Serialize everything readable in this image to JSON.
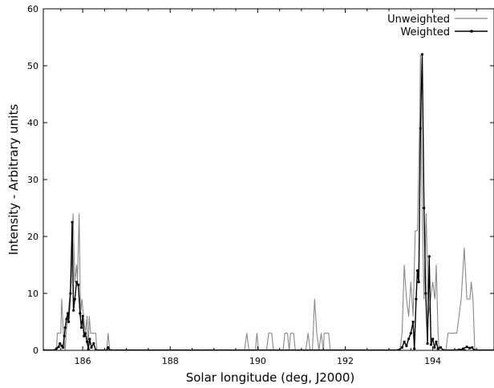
{
  "chart_data": {
    "type": "line",
    "xlabel": "Solar longitude (deg, J2000)",
    "ylabel": "Intensity - Arbitrary units",
    "xlim": [
      185.1,
      195.4
    ],
    "ylim": [
      0,
      60
    ],
    "xticks": [
      186,
      188,
      190,
      192,
      194
    ],
    "yticks": [
      0,
      10,
      20,
      30,
      40,
      50,
      60
    ],
    "grid": false,
    "legend_position": "top-right",
    "series": [
      {
        "name": "Unweighted",
        "color": "#888888",
        "marker": "none",
        "points": [
          [
            185.1,
            0
          ],
          [
            185.4,
            0
          ],
          [
            185.42,
            3
          ],
          [
            185.5,
            3
          ],
          [
            185.52,
            9
          ],
          [
            185.56,
            3
          ],
          [
            185.6,
            0
          ],
          [
            185.62,
            3
          ],
          [
            185.66,
            6
          ],
          [
            185.7,
            9
          ],
          [
            185.74,
            12
          ],
          [
            185.78,
            24
          ],
          [
            185.82,
            12
          ],
          [
            185.86,
            15
          ],
          [
            185.88,
            12
          ],
          [
            185.92,
            24
          ],
          [
            185.95,
            6
          ],
          [
            185.98,
            9
          ],
          [
            186.02,
            6
          ],
          [
            186.06,
            3
          ],
          [
            186.1,
            6
          ],
          [
            186.12,
            0
          ],
          [
            186.15,
            6
          ],
          [
            186.18,
            3
          ],
          [
            186.3,
            3
          ],
          [
            186.32,
            0
          ],
          [
            186.55,
            0
          ],
          [
            186.58,
            3
          ],
          [
            186.62,
            0
          ],
          [
            189.7,
            0
          ],
          [
            189.75,
            3
          ],
          [
            189.8,
            0
          ],
          [
            189.95,
            0
          ],
          [
            189.98,
            3
          ],
          [
            190.02,
            0
          ],
          [
            190.2,
            0
          ],
          [
            190.25,
            3
          ],
          [
            190.32,
            3
          ],
          [
            190.36,
            0
          ],
          [
            190.58,
            0
          ],
          [
            190.62,
            3
          ],
          [
            190.68,
            3
          ],
          [
            190.72,
            0
          ],
          [
            190.75,
            3
          ],
          [
            190.82,
            3
          ],
          [
            190.86,
            0
          ],
          [
            191.1,
            0
          ],
          [
            191.15,
            3
          ],
          [
            191.2,
            0
          ],
          [
            191.25,
            0
          ],
          [
            191.3,
            9
          ],
          [
            191.35,
            3
          ],
          [
            191.4,
            0
          ],
          [
            191.45,
            3
          ],
          [
            191.5,
            0
          ],
          [
            191.52,
            3
          ],
          [
            191.62,
            3
          ],
          [
            191.66,
            0
          ],
          [
            193.25,
            0
          ],
          [
            193.3,
            3
          ],
          [
            193.35,
            15
          ],
          [
            193.4,
            9
          ],
          [
            193.45,
            6
          ],
          [
            193.5,
            12
          ],
          [
            193.55,
            6
          ],
          [
            193.6,
            21
          ],
          [
            193.65,
            21
          ],
          [
            193.7,
            39
          ],
          [
            193.72,
            52
          ],
          [
            193.76,
            24
          ],
          [
            193.8,
            9
          ],
          [
            193.85,
            24
          ],
          [
            193.9,
            6
          ],
          [
            193.95,
            9
          ],
          [
            194.0,
            12
          ],
          [
            194.05,
            9
          ],
          [
            194.08,
            15
          ],
          [
            194.12,
            3
          ],
          [
            194.15,
            0
          ],
          [
            194.3,
            0
          ],
          [
            194.35,
            3
          ],
          [
            194.55,
            3
          ],
          [
            194.65,
            9
          ],
          [
            194.72,
            18
          ],
          [
            194.78,
            9
          ],
          [
            194.85,
            9
          ],
          [
            194.88,
            12
          ],
          [
            194.92,
            9
          ],
          [
            194.96,
            0
          ],
          [
            195.4,
            0
          ]
        ]
      },
      {
        "name": "Weighted",
        "color": "#000000",
        "marker": "dot",
        "points": [
          [
            185.1,
            0
          ],
          [
            185.35,
            0
          ],
          [
            185.4,
            0.3
          ],
          [
            185.45,
            0.6
          ],
          [
            185.48,
            1.2
          ],
          [
            185.52,
            0.8
          ],
          [
            185.55,
            0.5
          ],
          [
            185.58,
            2.5
          ],
          [
            185.6,
            4
          ],
          [
            185.63,
            5.5
          ],
          [
            185.66,
            6.5
          ],
          [
            185.68,
            5
          ],
          [
            185.72,
            10
          ],
          [
            185.76,
            22.5
          ],
          [
            185.79,
            7
          ],
          [
            185.82,
            9
          ],
          [
            185.86,
            12
          ],
          [
            185.9,
            11.5
          ],
          [
            185.94,
            6.5
          ],
          [
            185.97,
            4
          ],
          [
            186.0,
            6
          ],
          [
            186.03,
            2.5
          ],
          [
            186.06,
            3
          ],
          [
            186.1,
            1.5
          ],
          [
            186.13,
            0.2
          ],
          [
            186.16,
            2
          ],
          [
            186.2,
            0.5
          ],
          [
            186.25,
            1.2
          ],
          [
            186.3,
            0
          ],
          [
            186.55,
            0
          ],
          [
            186.58,
            0.5
          ],
          [
            186.62,
            0
          ],
          [
            193.2,
            0
          ],
          [
            193.3,
            0.5
          ],
          [
            193.35,
            1.5
          ],
          [
            193.4,
            0.8
          ],
          [
            193.45,
            2
          ],
          [
            193.5,
            3
          ],
          [
            193.55,
            5
          ],
          [
            193.58,
            0.3
          ],
          [
            193.62,
            9
          ],
          [
            193.65,
            14
          ],
          [
            193.68,
            12
          ],
          [
            193.72,
            39
          ],
          [
            193.76,
            52
          ],
          [
            193.8,
            25
          ],
          [
            193.84,
            10
          ],
          [
            193.88,
            1.2
          ],
          [
            193.92,
            16.5
          ],
          [
            193.96,
            1
          ],
          [
            194.0,
            2
          ],
          [
            194.04,
            0.5
          ],
          [
            194.08,
            1.5
          ],
          [
            194.12,
            0.3
          ],
          [
            194.18,
            0.5
          ],
          [
            194.25,
            0
          ],
          [
            194.6,
            0.1
          ],
          [
            194.7,
            0.3
          ],
          [
            194.78,
            0.6
          ],
          [
            194.84,
            0.4
          ],
          [
            194.9,
            0.5
          ],
          [
            194.95,
            0
          ],
          [
            195.4,
            0
          ]
        ]
      }
    ]
  }
}
